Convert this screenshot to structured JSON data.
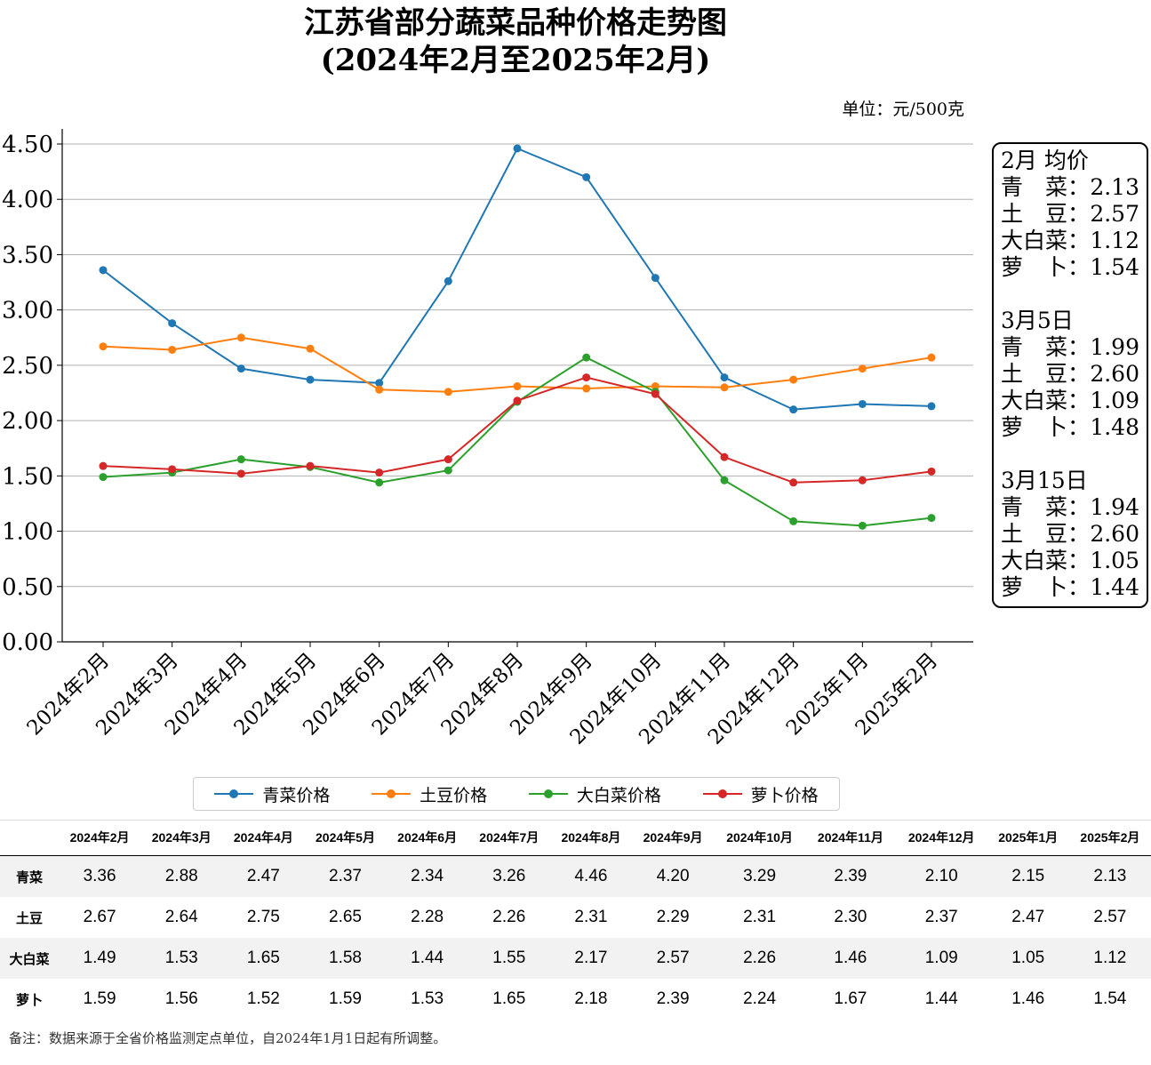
{
  "title_line1": "江苏省部分蔬菜品种价格走势图",
  "title_line2": "(2024年2月至2025年2月)",
  "unit_label": "单位：元/500克",
  "chart_data": {
    "type": "line",
    "categories": [
      "2024年2月",
      "2024年3月",
      "2024年4月",
      "2024年5月",
      "2024年6月",
      "2024年7月",
      "2024年8月",
      "2024年9月",
      "2024年10月",
      "2024年11月",
      "2024年12月",
      "2025年1月",
      "2025年2月"
    ],
    "ylim": [
      0,
      4.5
    ],
    "yticks": [
      "0.00",
      "0.50",
      "1.00",
      "1.50",
      "2.00",
      "2.50",
      "3.00",
      "3.50",
      "4.00",
      "4.50"
    ],
    "grid": true,
    "series": [
      {
        "name": "青菜价格",
        "color": "#1f77b4",
        "values": [
          3.36,
          2.88,
          2.47,
          2.37,
          2.34,
          3.26,
          4.46,
          4.2,
          3.29,
          2.39,
          2.1,
          2.15,
          2.13
        ]
      },
      {
        "name": "土豆价格",
        "color": "#ff7f0e",
        "values": [
          2.67,
          2.64,
          2.75,
          2.65,
          2.28,
          2.26,
          2.31,
          2.29,
          2.31,
          2.3,
          2.37,
          2.47,
          2.57
        ]
      },
      {
        "name": "大白菜价格",
        "color": "#2ca02c",
        "values": [
          1.49,
          1.53,
          1.65,
          1.58,
          1.44,
          1.55,
          2.17,
          2.57,
          2.26,
          1.46,
          1.09,
          1.05,
          1.12
        ]
      },
      {
        "name": "萝卜价格",
        "color": "#d62728",
        "values": [
          1.59,
          1.56,
          1.52,
          1.59,
          1.53,
          1.65,
          2.18,
          2.39,
          2.24,
          1.67,
          1.44,
          1.46,
          1.54
        ]
      }
    ]
  },
  "annotation": [
    {
      "heading": "2月 均价",
      "rows": [
        [
          "青　菜：",
          "2.13"
        ],
        [
          "土　豆：",
          "2.57"
        ],
        [
          "大白菜：",
          "1.12"
        ],
        [
          "萝　卜：",
          "1.54"
        ]
      ]
    },
    {
      "heading": "3月5日",
      "rows": [
        [
          "青　菜：",
          "1.99"
        ],
        [
          "土　豆：",
          "2.60"
        ],
        [
          "大白菜：",
          "1.09"
        ],
        [
          "萝　卜：",
          "1.48"
        ]
      ]
    },
    {
      "heading": "3月15日",
      "rows": [
        [
          "青　菜：",
          "1.94"
        ],
        [
          "土　豆：",
          "2.60"
        ],
        [
          "大白菜：",
          "1.05"
        ],
        [
          "萝　卜：",
          "1.44"
        ]
      ]
    }
  ],
  "table": {
    "headers": [
      "2024年2月",
      "2024年3月",
      "2024年4月",
      "2024年5月",
      "2024年6月",
      "2024年7月",
      "2024年8月",
      "2024年9月",
      "2024年10月",
      "2024年11月",
      "2024年12月",
      "2025年1月",
      "2025年2月"
    ],
    "rows": [
      {
        "label": "青菜",
        "values": [
          "3.36",
          "2.88",
          "2.47",
          "2.37",
          "2.34",
          "3.26",
          "4.46",
          "4.20",
          "3.29",
          "2.39",
          "2.10",
          "2.15",
          "2.13"
        ]
      },
      {
        "label": "土豆",
        "values": [
          "2.67",
          "2.64",
          "2.75",
          "2.65",
          "2.28",
          "2.26",
          "2.31",
          "2.29",
          "2.31",
          "2.30",
          "2.37",
          "2.47",
          "2.57"
        ]
      },
      {
        "label": "大白菜",
        "values": [
          "1.49",
          "1.53",
          "1.65",
          "1.58",
          "1.44",
          "1.55",
          "2.17",
          "2.57",
          "2.26",
          "1.46",
          "1.09",
          "1.05",
          "1.12"
        ]
      },
      {
        "label": "萝卜",
        "values": [
          "1.59",
          "1.56",
          "1.52",
          "1.59",
          "1.53",
          "1.65",
          "2.18",
          "2.39",
          "2.24",
          "1.67",
          "1.44",
          "1.46",
          "1.54"
        ]
      }
    ]
  },
  "footnote": "备注：数据来源于全省价格监测定点单位，自2024年1月1日起有所调整。"
}
